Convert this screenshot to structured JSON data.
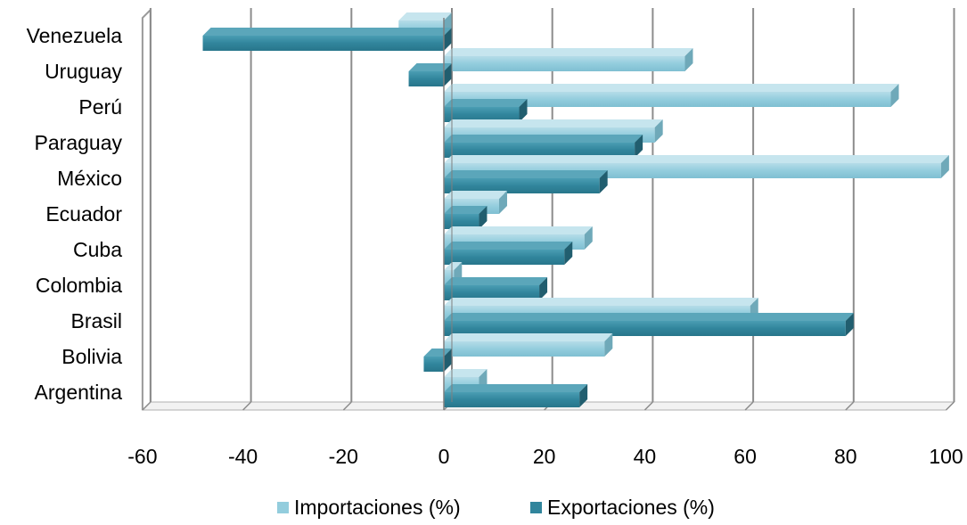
{
  "chart_data": {
    "type": "bar",
    "orientation": "horizontal",
    "style": "3d-clustered",
    "categories": [
      "Argentina",
      "Bolivia",
      "Brasil",
      "Colombia",
      "Cuba",
      "Ecuador",
      "México",
      "Paraguay",
      "Perú",
      "Uruguay",
      "Venezuela"
    ],
    "series": [
      {
        "name": "Importaciones (%)",
        "color": "#93CDDD",
        "values": [
          7,
          32,
          61,
          2,
          28,
          11,
          99,
          42,
          89,
          48,
          -9
        ]
      },
      {
        "name": "Exportaciones (%)",
        "color": "#31859C",
        "values": [
          27,
          -4,
          80,
          19,
          24,
          7,
          31,
          38,
          15,
          -7,
          -48
        ]
      }
    ],
    "x_ticks": [
      "-60",
      "-40",
      "-20",
      "0",
      "20",
      "40",
      "60",
      "80",
      "100"
    ],
    "xlim": [
      -60,
      100
    ],
    "grid": true,
    "legend_position": "bottom",
    "title": "",
    "xlabel": "",
    "ylabel": ""
  }
}
